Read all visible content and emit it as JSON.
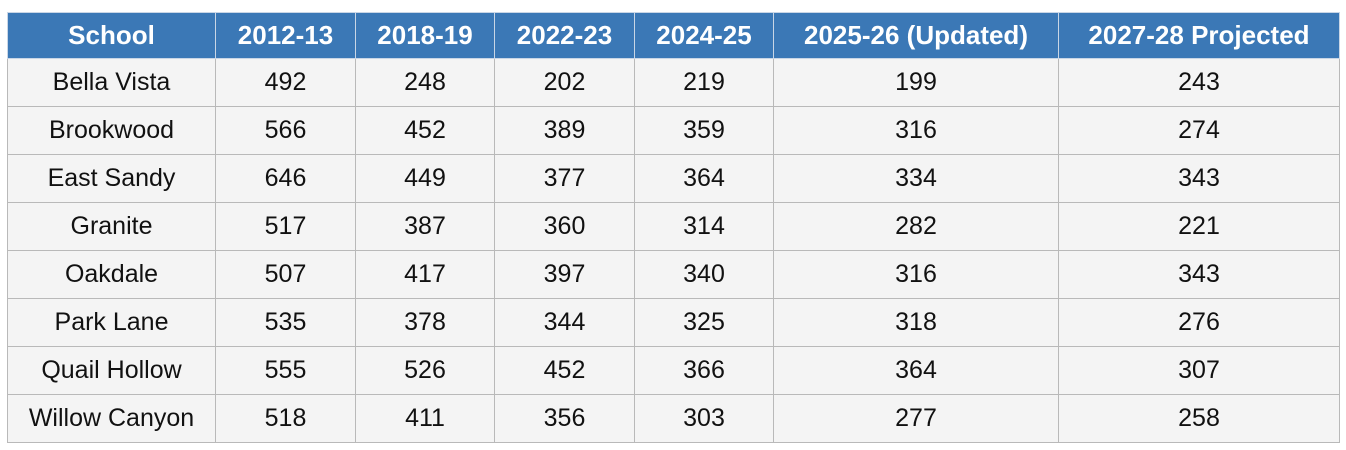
{
  "table": {
    "header": [
      "School",
      "2012-13",
      "2018-19",
      "2022-23",
      "2024-25",
      "2025-26 (Updated)",
      "2027-28 Projected"
    ],
    "rows": [
      [
        "Bella Vista",
        492,
        248,
        202,
        219,
        199,
        243
      ],
      [
        "Brookwood",
        566,
        452,
        389,
        359,
        316,
        274
      ],
      [
        "East Sandy",
        646,
        449,
        377,
        364,
        334,
        343
      ],
      [
        "Granite",
        517,
        387,
        360,
        314,
        282,
        221
      ],
      [
        "Oakdale",
        507,
        417,
        397,
        340,
        316,
        343
      ],
      [
        "Park Lane",
        535,
        378,
        344,
        325,
        318,
        276
      ],
      [
        "Quail Hollow",
        555,
        526,
        452,
        366,
        364,
        307
      ],
      [
        "Willow Canyon",
        518,
        411,
        356,
        303,
        277,
        258
      ]
    ]
  }
}
